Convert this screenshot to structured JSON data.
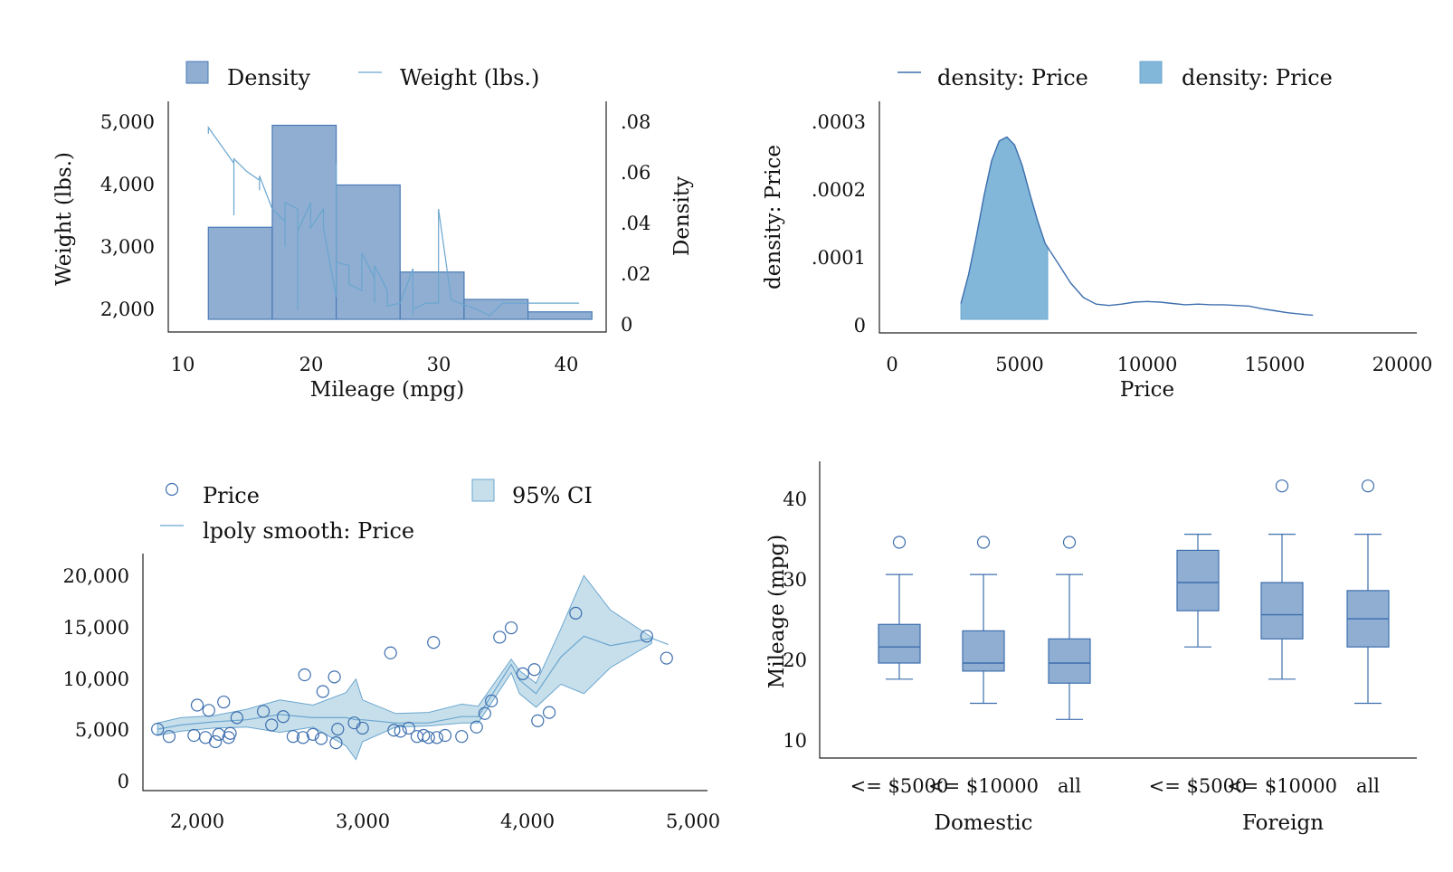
{
  "colors": {
    "bar_fill": "#8faed2",
    "bar_stroke": "#4a7ab5",
    "line": "#6aa6cf",
    "density_fill": "#82b7d9",
    "ci_fill": "#c7dfeb",
    "ci_stroke": "#6aa6cf",
    "box_fill": "#8faed2",
    "box_stroke": "#3d6fae"
  },
  "panels": {
    "top_left": {
      "legend": [
        "Density",
        "Weight (lbs.)"
      ],
      "xlabel": "Mileage (mpg)",
      "ylabel_left": "Weight (lbs.)",
      "ylabel_right": "Density",
      "xticks": [
        "10",
        "20",
        "30",
        "40"
      ],
      "yticks_left": [
        "5,000",
        "4,000",
        "3,000",
        "2,000"
      ],
      "yticks_right": [
        ".08",
        ".06",
        ".04",
        ".02",
        "0"
      ]
    },
    "top_right": {
      "legend": [
        "density: Price",
        "density: Price"
      ],
      "xlabel": "Price",
      "ylabel": "density: Price",
      "xticks": [
        "0",
        "5000",
        "10000",
        "15000",
        "20000"
      ],
      "yticks": [
        ".0003",
        ".0002",
        ".0001",
        "0"
      ]
    },
    "bottom_left": {
      "legend": [
        "Price",
        "95% CI",
        "lpoly smooth: Price"
      ],
      "xticks": [
        "2,000",
        "3,000",
        "4,000",
        "5,000"
      ],
      "yticks": [
        "20,000",
        "15,000",
        "10,000",
        "5,000",
        "0"
      ]
    },
    "bottom_right": {
      "ylabel": "Mileage (mpg)",
      "yticks": [
        "40",
        "30",
        "20",
        "10"
      ],
      "box_labels": [
        "<= $5000",
        "<= $10000",
        "all",
        "<= $5000",
        "<= $10000",
        "all"
      ],
      "group_labels": [
        "Domestic",
        "Foreign"
      ]
    }
  },
  "chart_data": [
    {
      "type": "bar",
      "title": "",
      "xlabel": "Mileage (mpg)",
      "ylabel": "Density",
      "xlim": [
        10,
        42
      ],
      "ylim": [
        0,
        0.08
      ],
      "bins": [
        {
          "x0": 12,
          "x1": 17,
          "density": 0.037
        },
        {
          "x0": 17,
          "x1": 22,
          "density": 0.078
        },
        {
          "x0": 22,
          "x1": 27,
          "density": 0.054
        },
        {
          "x0": 27,
          "x1": 32,
          "density": 0.019
        },
        {
          "x0": 32,
          "x1": 37,
          "density": 0.008
        },
        {
          "x0": 37,
          "x1": 42,
          "density": 0.003
        }
      ],
      "overlay_line": {
        "name": "Weight (lbs.)",
        "y_axis": "left",
        "ylim": [
          1800,
          5100
        ],
        "points": [
          [
            12,
            4800
          ],
          [
            12,
            4900
          ],
          [
            14,
            4330
          ],
          [
            14,
            3500
          ],
          [
            14,
            4400
          ],
          [
            15,
            4200
          ],
          [
            16,
            4060
          ],
          [
            16,
            3900
          ],
          [
            16,
            4130
          ],
          [
            17,
            3600
          ],
          [
            18,
            3400
          ],
          [
            18,
            3000
          ],
          [
            18,
            3700
          ],
          [
            19,
            3600
          ],
          [
            19,
            2000
          ],
          [
            19,
            3250
          ],
          [
            20,
            3700
          ],
          [
            20,
            3300
          ],
          [
            21,
            3600
          ],
          [
            21,
            3300
          ],
          [
            22,
            2200
          ],
          [
            22,
            4330
          ],
          [
            22,
            2750
          ],
          [
            23,
            2700
          ],
          [
            23,
            2400
          ],
          [
            24,
            2300
          ],
          [
            24,
            2900
          ],
          [
            25,
            2500
          ],
          [
            25,
            2100
          ],
          [
            25,
            2700
          ],
          [
            26,
            2300
          ],
          [
            26,
            2050
          ],
          [
            27,
            2100
          ],
          [
            28,
            2650
          ],
          [
            28,
            1900
          ],
          [
            28,
            2000
          ],
          [
            29,
            2100
          ],
          [
            30,
            2100
          ],
          [
            30,
            3600
          ],
          [
            31,
            2150
          ],
          [
            33,
            2000
          ],
          [
            34,
            1900
          ],
          [
            35,
            2100
          ],
          [
            36,
            2100
          ],
          [
            41,
            2100
          ]
        ]
      }
    },
    {
      "type": "area",
      "title": "",
      "xlabel": "Price",
      "ylabel": "density: Price",
      "xlim": [
        0,
        20000
      ],
      "ylim": [
        0,
        0.0003
      ],
      "series": [
        {
          "name": "density: Price",
          "x": [
            2700,
            3000,
            3300,
            3600,
            3900,
            4200,
            4500,
            4800,
            5100,
            5400,
            5700,
            6000,
            6500,
            7000,
            7500,
            8000,
            8500,
            9000,
            9500,
            10000,
            10500,
            11000,
            11500,
            12000,
            12500,
            13000,
            13500,
            14000,
            14500,
            15000,
            15500,
            16000,
            16500
          ],
          "y": [
            2.4e-05,
            6.8e-05,
            0.000125,
            0.000186,
            0.00024,
            0.00027,
            0.000276,
            0.000264,
            0.000233,
            0.00019,
            0.00015,
            0.000115,
            8.5e-05,
            5.5e-05,
            3.3e-05,
            2.3e-05,
            2.1e-05,
            2.3e-05,
            2.6e-05,
            2.7e-05,
            2.6e-05,
            2.4e-05,
            2.2e-05,
            2.3e-05,
            2.2e-05,
            2.2e-05,
            2.1e-05,
            2e-05,
            1.6e-05,
            1.3e-05,
            1e-05,
            8e-06,
            6e-06
          ]
        },
        {
          "name": "density: Price",
          "shaded_range": [
            2700,
            6100
          ]
        }
      ]
    },
    {
      "type": "scatter",
      "title": "",
      "xlim": [
        1700,
        5000
      ],
      "ylim": [
        0,
        20000
      ],
      "series": [
        {
          "name": "Price",
          "points": [
            [
              1760,
              5100
            ],
            [
              1830,
              4400
            ],
            [
              1980,
              4500
            ],
            [
              2000,
              7400
            ],
            [
              2050,
              4300
            ],
            [
              2070,
              6900
            ],
            [
              2110,
              3900
            ],
            [
              2130,
              4600
            ],
            [
              2160,
              7700
            ],
            [
              2190,
              4300
            ],
            [
              2200,
              4700
            ],
            [
              2240,
              6200
            ],
            [
              2400,
              6800
            ],
            [
              2450,
              5500
            ],
            [
              2520,
              6300
            ],
            [
              2580,
              4400
            ],
            [
              2640,
              4300
            ],
            [
              2650,
              10300
            ],
            [
              2700,
              4600
            ],
            [
              2750,
              4200
            ],
            [
              2760,
              8700
            ],
            [
              2830,
              10100
            ],
            [
              2840,
              3800
            ],
            [
              2850,
              5100
            ],
            [
              2950,
              5700
            ],
            [
              3000,
              5200
            ],
            [
              3170,
              12400
            ],
            [
              3190,
              5000
            ],
            [
              3230,
              4900
            ],
            [
              3280,
              5200
            ],
            [
              3330,
              4400
            ],
            [
              3370,
              4500
            ],
            [
              3400,
              4300
            ],
            [
              3430,
              13400
            ],
            [
              3450,
              4300
            ],
            [
              3500,
              4500
            ],
            [
              3600,
              4400
            ],
            [
              3690,
              5300
            ],
            [
              3740,
              6600
            ],
            [
              3780,
              7800
            ],
            [
              3830,
              13900
            ],
            [
              3900,
              14800
            ],
            [
              3970,
              10400
            ],
            [
              4040,
              10800
            ],
            [
              4060,
              5900
            ],
            [
              4130,
              6700
            ],
            [
              4290,
              16200
            ],
            [
              4720,
              14000
            ],
            [
              4840,
              11900
            ]
          ]
        },
        {
          "name": "95% CI",
          "x": [
            1760,
            1900,
            2100,
            2300,
            2500,
            2700,
            2900,
            2960,
            3000,
            3200,
            3400,
            3600,
            3700,
            3900,
            3950,
            4050,
            4200,
            4340,
            4500,
            4750
          ],
          "upper": [
            5700,
            6200,
            6400,
            7000,
            7900,
            7400,
            8600,
            9900,
            7900,
            6600,
            6700,
            7500,
            7300,
            11800,
            10700,
            9500,
            14700,
            19800,
            16500,
            13900
          ],
          "lower": [
            4500,
            4900,
            5200,
            5300,
            4800,
            5300,
            3500,
            2200,
            3900,
            5300,
            5400,
            5700,
            5700,
            10500,
            8500,
            7200,
            9400,
            8500,
            11000,
            13300
          ]
        },
        {
          "name": "lpoly smooth: Price",
          "x": [
            1760,
            1900,
            2100,
            2300,
            2500,
            2700,
            2900,
            2960,
            3000,
            3200,
            3400,
            3600,
            3700,
            3900,
            3950,
            4050,
            4200,
            4340,
            4500,
            4750,
            4850
          ],
          "y": [
            5100,
            5500,
            5800,
            6000,
            6500,
            6200,
            6200,
            6000,
            6000,
            5700,
            5700,
            6300,
            6300,
            11300,
            9800,
            8500,
            12000,
            14000,
            13100,
            13800,
            13200
          ]
        }
      ]
    },
    {
      "type": "box",
      "title": "",
      "ylabel": "Mileage (mpg)",
      "ylim": [
        10,
        44
      ],
      "boxes": [
        {
          "group": "Domestic",
          "label": "<= $5000",
          "min": 18,
          "q1": 20,
          "median": 22,
          "q3": 24.8,
          "max": 31,
          "outliers": [
            35
          ]
        },
        {
          "group": "Domestic",
          "label": "<= $10000",
          "min": 15,
          "q1": 19,
          "median": 20,
          "q3": 24,
          "max": 31,
          "outliers": [
            35
          ]
        },
        {
          "group": "Domestic",
          "label": "all",
          "min": 13,
          "q1": 17.5,
          "median": 20,
          "q3": 23,
          "max": 31,
          "outliers": [
            35
          ]
        },
        {
          "group": "Foreign",
          "label": "<= $5000",
          "min": 22,
          "q1": 26.5,
          "median": 30,
          "q3": 34,
          "max": 36,
          "outliers": []
        },
        {
          "group": "Foreign",
          "label": "<= $10000",
          "min": 18,
          "q1": 23,
          "median": 26,
          "q3": 30,
          "max": 36,
          "outliers": [
            42
          ]
        },
        {
          "group": "Foreign",
          "label": "all",
          "min": 15,
          "q1": 22,
          "median": 25.5,
          "q3": 29,
          "max": 36,
          "outliers": [
            42
          ]
        }
      ]
    }
  ]
}
